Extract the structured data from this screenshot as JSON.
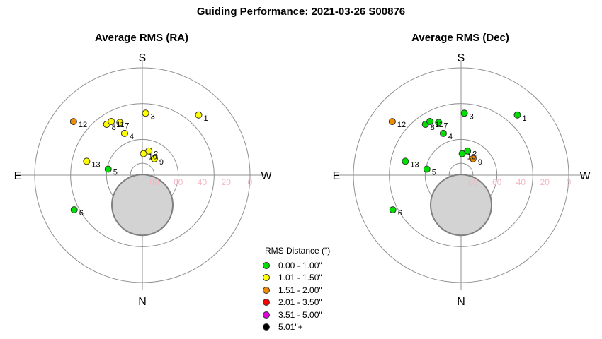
{
  "title": "Guiding Performance: 2021-03-26 S00876",
  "colors": {
    "bin1": "#00e000",
    "bin2": "#ffff00",
    "bin3": "#f08c00",
    "bin4": "#ff0000",
    "bin5": "#e000e0",
    "bin6": "#000000",
    "ring": "#909090",
    "altitude_label": "#f4b8c4",
    "zenith_fill": "#d3d3d3",
    "zenith_edge": "#808080"
  },
  "legend": {
    "title": "RMS Distance (\")",
    "items": [
      {
        "label": "0.00 - 1.00\"",
        "color": "#00e000"
      },
      {
        "label": "1.01 - 1.50\"",
        "color": "#ffff00"
      },
      {
        "label": "1.51 - 2.00\"",
        "color": "#f08c00"
      },
      {
        "label": "2.01 - 3.50\"",
        "color": "#ff0000"
      },
      {
        "label": "3.51 - 5.00\"",
        "color": "#e000e0"
      },
      {
        "label": "5.01\"+",
        "color": "#000000"
      }
    ]
  },
  "chart_data": [
    {
      "type": "scatter",
      "projection": "polar-sky",
      "title": "Average RMS (RA)",
      "directions": {
        "top": "S",
        "bottom": "N",
        "left": "E",
        "right": "W"
      },
      "altitude_ticks": [
        80,
        60,
        40,
        20,
        0
      ],
      "ring_altitudes": [
        0,
        30,
        60,
        80
      ],
      "zenith_exclusion_deg": 17,
      "points": [
        {
          "label": "1",
          "az": 137,
          "alt": 21,
          "color": "#ffff00"
        },
        {
          "label": "2",
          "az": 165,
          "alt": 69,
          "color": "#ffff00"
        },
        {
          "label": "3",
          "az": 177,
          "alt": 38,
          "color": "#ffff00"
        },
        {
          "label": "4",
          "az": 203,
          "alt": 52,
          "color": "#ffff00"
        },
        {
          "label": "5",
          "az": 260,
          "alt": 61,
          "color": "#00e000"
        },
        {
          "label": "6",
          "az": 297,
          "alt": 26,
          "color": "#00e000"
        },
        {
          "label": "7",
          "az": 203,
          "alt": 42,
          "color": "#ffff00"
        },
        {
          "label": "8",
          "az": 215,
          "alt": 38,
          "color": "#ffff00"
        },
        {
          "label": "9",
          "az": 144,
          "alt": 73,
          "color": "#ffff00"
        },
        {
          "label": "10",
          "az": 177,
          "alt": 72,
          "color": "#ffff00"
        },
        {
          "label": "11",
          "az": 210,
          "alt": 38,
          "color": "#ffff00"
        },
        {
          "label": "12",
          "az": 232,
          "alt": 17,
          "color": "#f08c00"
        },
        {
          "label": "13",
          "az": 256,
          "alt": 42,
          "color": "#ffff00"
        }
      ]
    },
    {
      "type": "scatter",
      "projection": "polar-sky",
      "title": "Average RMS (Dec)",
      "directions": {
        "top": "S",
        "bottom": "N",
        "left": "E",
        "right": "W"
      },
      "altitude_ticks": [
        80,
        60,
        40,
        20,
        0
      ],
      "ring_altitudes": [
        0,
        30,
        60,
        80
      ],
      "zenith_exclusion_deg": 17,
      "points": [
        {
          "label": "1",
          "az": 137,
          "alt": 21,
          "color": "#00e000"
        },
        {
          "label": "2",
          "az": 165,
          "alt": 69,
          "color": "#00e000"
        },
        {
          "label": "3",
          "az": 177,
          "alt": 38,
          "color": "#00e000"
        },
        {
          "label": "4",
          "az": 203,
          "alt": 52,
          "color": "#00e000"
        },
        {
          "label": "5",
          "az": 260,
          "alt": 61,
          "color": "#00e000"
        },
        {
          "label": "6",
          "az": 297,
          "alt": 26,
          "color": "#00e000"
        },
        {
          "label": "7",
          "az": 203,
          "alt": 42,
          "color": "#00e000"
        },
        {
          "label": "8",
          "az": 215,
          "alt": 38,
          "color": "#00e000"
        },
        {
          "label": "9",
          "az": 144,
          "alt": 73,
          "color": "#f08c00"
        },
        {
          "label": "10",
          "az": 177,
          "alt": 72,
          "color": "#00e000"
        },
        {
          "label": "11",
          "az": 210,
          "alt": 38,
          "color": "#00e000"
        },
        {
          "label": "12",
          "az": 232,
          "alt": 17,
          "color": "#f08c00"
        },
        {
          "label": "13",
          "az": 256,
          "alt": 42,
          "color": "#00e000"
        }
      ]
    }
  ]
}
